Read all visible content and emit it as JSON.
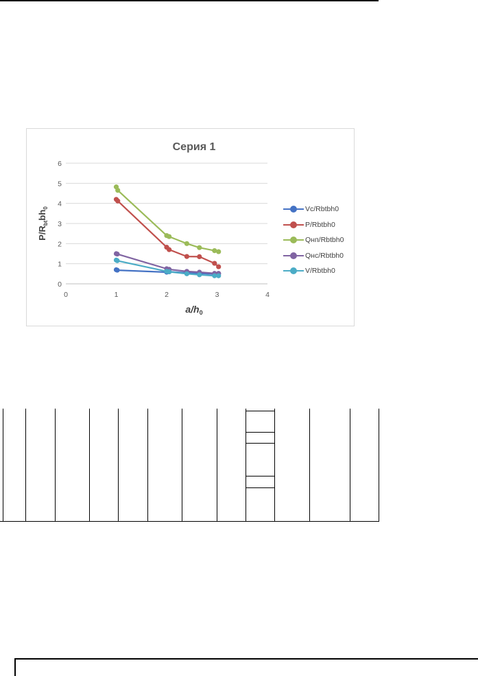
{
  "chart_data": {
    "type": "line",
    "title": "Серия 1",
    "xlabel": "a/h₀",
    "ylabel": "P/R_bt·b·h₀",
    "xlim": [
      0,
      4
    ],
    "ylim": [
      0,
      6
    ],
    "xticks": [
      "0",
      "1",
      "2",
      "3",
      "4"
    ],
    "yticks": [
      "0",
      "1",
      "2",
      "3",
      "4",
      "5",
      "6"
    ],
    "grid": "horizontal",
    "legend": "right",
    "series": [
      {
        "name": "Vc/Rbtbh0",
        "color": "#4472c4",
        "points": [
          [
            1.0,
            0.7
          ],
          [
            1.02,
            0.68
          ],
          [
            2.0,
            0.58
          ],
          [
            2.05,
            0.6
          ],
          [
            2.4,
            0.55
          ],
          [
            2.65,
            0.52
          ],
          [
            2.95,
            0.48
          ],
          [
            3.03,
            0.5
          ]
        ]
      },
      {
        "name": "P/Rbtbh0",
        "color": "#c0504d",
        "points": [
          [
            1.0,
            4.2
          ],
          [
            1.03,
            4.12
          ],
          [
            2.0,
            1.82
          ],
          [
            2.05,
            1.7
          ],
          [
            2.4,
            1.36
          ],
          [
            2.65,
            1.35
          ],
          [
            2.95,
            1.02
          ],
          [
            3.03,
            0.85
          ]
        ]
      },
      {
        "name": "Qнп/Rbtbh0",
        "color": "#9bbb59",
        "points": [
          [
            1.0,
            4.82
          ],
          [
            1.03,
            4.65
          ],
          [
            2.0,
            2.4
          ],
          [
            2.05,
            2.35
          ],
          [
            2.4,
            2.0
          ],
          [
            2.65,
            1.8
          ],
          [
            2.95,
            1.65
          ],
          [
            3.03,
            1.6
          ]
        ]
      },
      {
        "name": "Qнс/Rbtbh0",
        "color": "#8064a2",
        "points": [
          [
            1.0,
            1.5
          ],
          [
            1.02,
            1.48
          ],
          [
            2.0,
            0.75
          ],
          [
            2.05,
            0.72
          ],
          [
            2.4,
            0.62
          ],
          [
            2.65,
            0.58
          ],
          [
            2.95,
            0.52
          ],
          [
            3.03,
            0.52
          ]
        ]
      },
      {
        "name": "V/Rbtbh0",
        "color": "#4bacc6",
        "points": [
          [
            1.0,
            1.18
          ],
          [
            1.02,
            1.15
          ],
          [
            2.0,
            0.62
          ],
          [
            2.05,
            0.6
          ],
          [
            2.4,
            0.5
          ],
          [
            2.65,
            0.45
          ],
          [
            2.95,
            0.4
          ],
          [
            3.03,
            0.4
          ]
        ]
      }
    ]
  }
}
